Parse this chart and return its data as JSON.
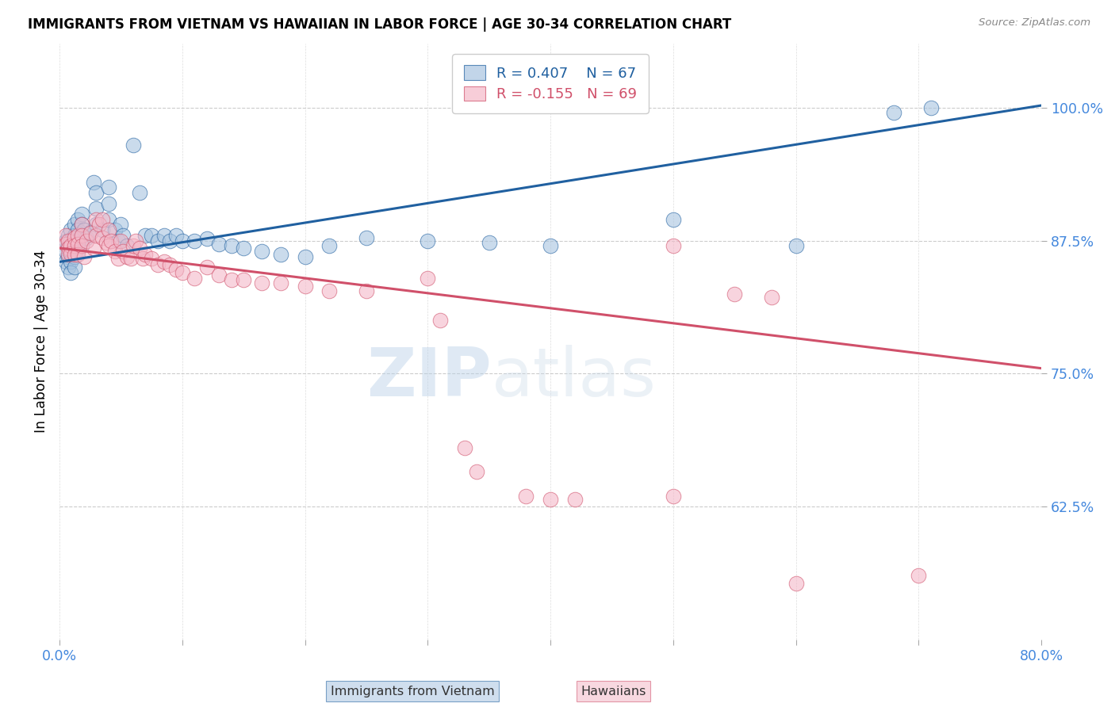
{
  "title": "IMMIGRANTS FROM VIETNAM VS HAWAIIAN IN LABOR FORCE | AGE 30-34 CORRELATION CHART",
  "source": "Source: ZipAtlas.com",
  "ylabel": "In Labor Force | Age 30-34",
  "yticks": [
    0.625,
    0.75,
    0.875,
    1.0
  ],
  "ytick_labels": [
    "62.5%",
    "75.0%",
    "87.5%",
    "100.0%"
  ],
  "xlim": [
    0.0,
    0.8
  ],
  "ylim": [
    0.5,
    1.06
  ],
  "legend_r1": "R = 0.407",
  "legend_n1": "N = 67",
  "legend_r2": "R = -0.155",
  "legend_n2": "N = 69",
  "blue_color": "#A8C4E0",
  "pink_color": "#F4B8C8",
  "blue_line_color": "#2060A0",
  "pink_line_color": "#D0506A",
  "axis_label_color": "#4488DD",
  "watermark_zip": "ZIP",
  "watermark_atlas": "atlas",
  "scatter_blue": [
    [
      0.005,
      0.875
    ],
    [
      0.005,
      0.865
    ],
    [
      0.005,
      0.855
    ],
    [
      0.007,
      0.88
    ],
    [
      0.007,
      0.87
    ],
    [
      0.007,
      0.86
    ],
    [
      0.007,
      0.85
    ],
    [
      0.009,
      0.885
    ],
    [
      0.009,
      0.875
    ],
    [
      0.009,
      0.865
    ],
    [
      0.009,
      0.855
    ],
    [
      0.009,
      0.845
    ],
    [
      0.012,
      0.89
    ],
    [
      0.012,
      0.88
    ],
    [
      0.012,
      0.87
    ],
    [
      0.012,
      0.86
    ],
    [
      0.012,
      0.85
    ],
    [
      0.015,
      0.895
    ],
    [
      0.015,
      0.885
    ],
    [
      0.015,
      0.875
    ],
    [
      0.015,
      0.865
    ],
    [
      0.018,
      0.9
    ],
    [
      0.018,
      0.89
    ],
    [
      0.018,
      0.88
    ],
    [
      0.018,
      0.87
    ],
    [
      0.02,
      0.885
    ],
    [
      0.022,
      0.878
    ],
    [
      0.025,
      0.883
    ],
    [
      0.028,
      0.93
    ],
    [
      0.03,
      0.92
    ],
    [
      0.03,
      0.905
    ],
    [
      0.03,
      0.89
    ],
    [
      0.035,
      0.885
    ],
    [
      0.04,
      0.925
    ],
    [
      0.04,
      0.91
    ],
    [
      0.04,
      0.895
    ],
    [
      0.045,
      0.885
    ],
    [
      0.048,
      0.875
    ],
    [
      0.05,
      0.89
    ],
    [
      0.052,
      0.88
    ],
    [
      0.055,
      0.87
    ],
    [
      0.06,
      0.965
    ],
    [
      0.065,
      0.92
    ],
    [
      0.07,
      0.88
    ],
    [
      0.075,
      0.88
    ],
    [
      0.08,
      0.875
    ],
    [
      0.085,
      0.88
    ],
    [
      0.09,
      0.875
    ],
    [
      0.095,
      0.88
    ],
    [
      0.1,
      0.875
    ],
    [
      0.11,
      0.875
    ],
    [
      0.12,
      0.877
    ],
    [
      0.13,
      0.872
    ],
    [
      0.14,
      0.87
    ],
    [
      0.15,
      0.868
    ],
    [
      0.165,
      0.865
    ],
    [
      0.18,
      0.862
    ],
    [
      0.2,
      0.86
    ],
    [
      0.22,
      0.87
    ],
    [
      0.25,
      0.878
    ],
    [
      0.3,
      0.875
    ],
    [
      0.35,
      0.873
    ],
    [
      0.4,
      0.87
    ],
    [
      0.5,
      0.895
    ],
    [
      0.6,
      0.87
    ],
    [
      0.68,
      0.995
    ],
    [
      0.71,
      1.0
    ]
  ],
  "scatter_pink": [
    [
      0.005,
      0.88
    ],
    [
      0.005,
      0.872
    ],
    [
      0.007,
      0.875
    ],
    [
      0.007,
      0.868
    ],
    [
      0.007,
      0.862
    ],
    [
      0.009,
      0.87
    ],
    [
      0.009,
      0.863
    ],
    [
      0.012,
      0.878
    ],
    [
      0.012,
      0.87
    ],
    [
      0.012,
      0.862
    ],
    [
      0.015,
      0.88
    ],
    [
      0.015,
      0.872
    ],
    [
      0.015,
      0.862
    ],
    [
      0.018,
      0.89
    ],
    [
      0.018,
      0.88
    ],
    [
      0.018,
      0.87
    ],
    [
      0.02,
      0.86
    ],
    [
      0.022,
      0.875
    ],
    [
      0.025,
      0.882
    ],
    [
      0.028,
      0.868
    ],
    [
      0.03,
      0.895
    ],
    [
      0.03,
      0.88
    ],
    [
      0.032,
      0.89
    ],
    [
      0.035,
      0.895
    ],
    [
      0.035,
      0.878
    ],
    [
      0.038,
      0.873
    ],
    [
      0.04,
      0.885
    ],
    [
      0.04,
      0.87
    ],
    [
      0.042,
      0.875
    ],
    [
      0.045,
      0.865
    ],
    [
      0.048,
      0.858
    ],
    [
      0.05,
      0.875
    ],
    [
      0.052,
      0.865
    ],
    [
      0.055,
      0.86
    ],
    [
      0.058,
      0.858
    ],
    [
      0.06,
      0.87
    ],
    [
      0.062,
      0.875
    ],
    [
      0.065,
      0.868
    ],
    [
      0.068,
      0.858
    ],
    [
      0.07,
      0.862
    ],
    [
      0.075,
      0.858
    ],
    [
      0.08,
      0.852
    ],
    [
      0.085,
      0.855
    ],
    [
      0.09,
      0.852
    ],
    [
      0.095,
      0.848
    ],
    [
      0.1,
      0.845
    ],
    [
      0.11,
      0.84
    ],
    [
      0.12,
      0.85
    ],
    [
      0.13,
      0.843
    ],
    [
      0.14,
      0.838
    ],
    [
      0.15,
      0.838
    ],
    [
      0.165,
      0.835
    ],
    [
      0.18,
      0.835
    ],
    [
      0.2,
      0.832
    ],
    [
      0.22,
      0.828
    ],
    [
      0.25,
      0.828
    ],
    [
      0.3,
      0.84
    ],
    [
      0.31,
      0.8
    ],
    [
      0.33,
      0.68
    ],
    [
      0.34,
      0.658
    ],
    [
      0.38,
      0.635
    ],
    [
      0.4,
      0.632
    ],
    [
      0.42,
      0.632
    ],
    [
      0.5,
      0.87
    ],
    [
      0.5,
      0.635
    ],
    [
      0.55,
      0.825
    ],
    [
      0.58,
      0.822
    ],
    [
      0.6,
      0.553
    ],
    [
      0.7,
      0.56
    ]
  ],
  "blue_line_x": [
    0.0,
    0.8
  ],
  "blue_line_y": [
    0.855,
    1.002
  ],
  "pink_line_x": [
    0.0,
    0.8
  ],
  "pink_line_y": [
    0.868,
    0.755
  ]
}
